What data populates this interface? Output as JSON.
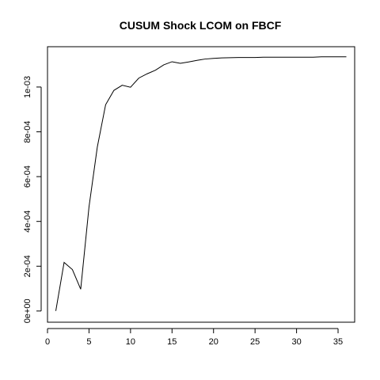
{
  "chart_data": {
    "type": "line",
    "title": "CUSUM Shock LCOM on FBCF",
    "xlabel": "",
    "ylabel": "",
    "xlim": [
      0,
      37
    ],
    "ylim": [
      -5e-05,
      0.00118
    ],
    "x_ticks": [
      0,
      5,
      10,
      15,
      20,
      25,
      30,
      35
    ],
    "x_tick_labels": [
      "0",
      "5",
      "10",
      "15",
      "20",
      "25",
      "30",
      "35"
    ],
    "y_ticks": [
      0,
      0.0002,
      0.0004,
      0.0006,
      0.0008,
      0.001
    ],
    "y_tick_labels": [
      "0e+00",
      "2e-04",
      "4e-04",
      "6e-04",
      "8e-04",
      "1e-03"
    ],
    "grid": false,
    "series": [
      {
        "x": [
          1,
          2,
          3,
          4,
          5,
          6,
          7,
          8,
          9,
          10,
          11,
          12,
          13,
          14,
          15,
          16,
          17,
          18,
          19,
          20,
          21,
          22,
          23,
          24,
          25,
          26,
          27,
          28,
          29,
          30,
          31,
          32,
          33,
          34,
          35,
          36
        ],
        "values": [
          3e-07,
          0.000217,
          0.000185,
          9.75e-05,
          0.000465,
          0.000732,
          0.000921,
          0.000985,
          0.001008,
          0.000999,
          0.00104,
          0.001059,
          0.001075,
          0.001099,
          0.001113,
          0.001106,
          0.001112,
          0.001119,
          0.001125,
          0.001128,
          0.00113,
          0.001131,
          0.001132,
          0.001132,
          0.001132,
          0.001133,
          0.001133,
          0.001133,
          0.001133,
          0.001133,
          0.001133,
          0.001133,
          0.001135,
          0.001135,
          0.001135,
          0.001135
        ],
        "color": "#000000"
      }
    ]
  }
}
